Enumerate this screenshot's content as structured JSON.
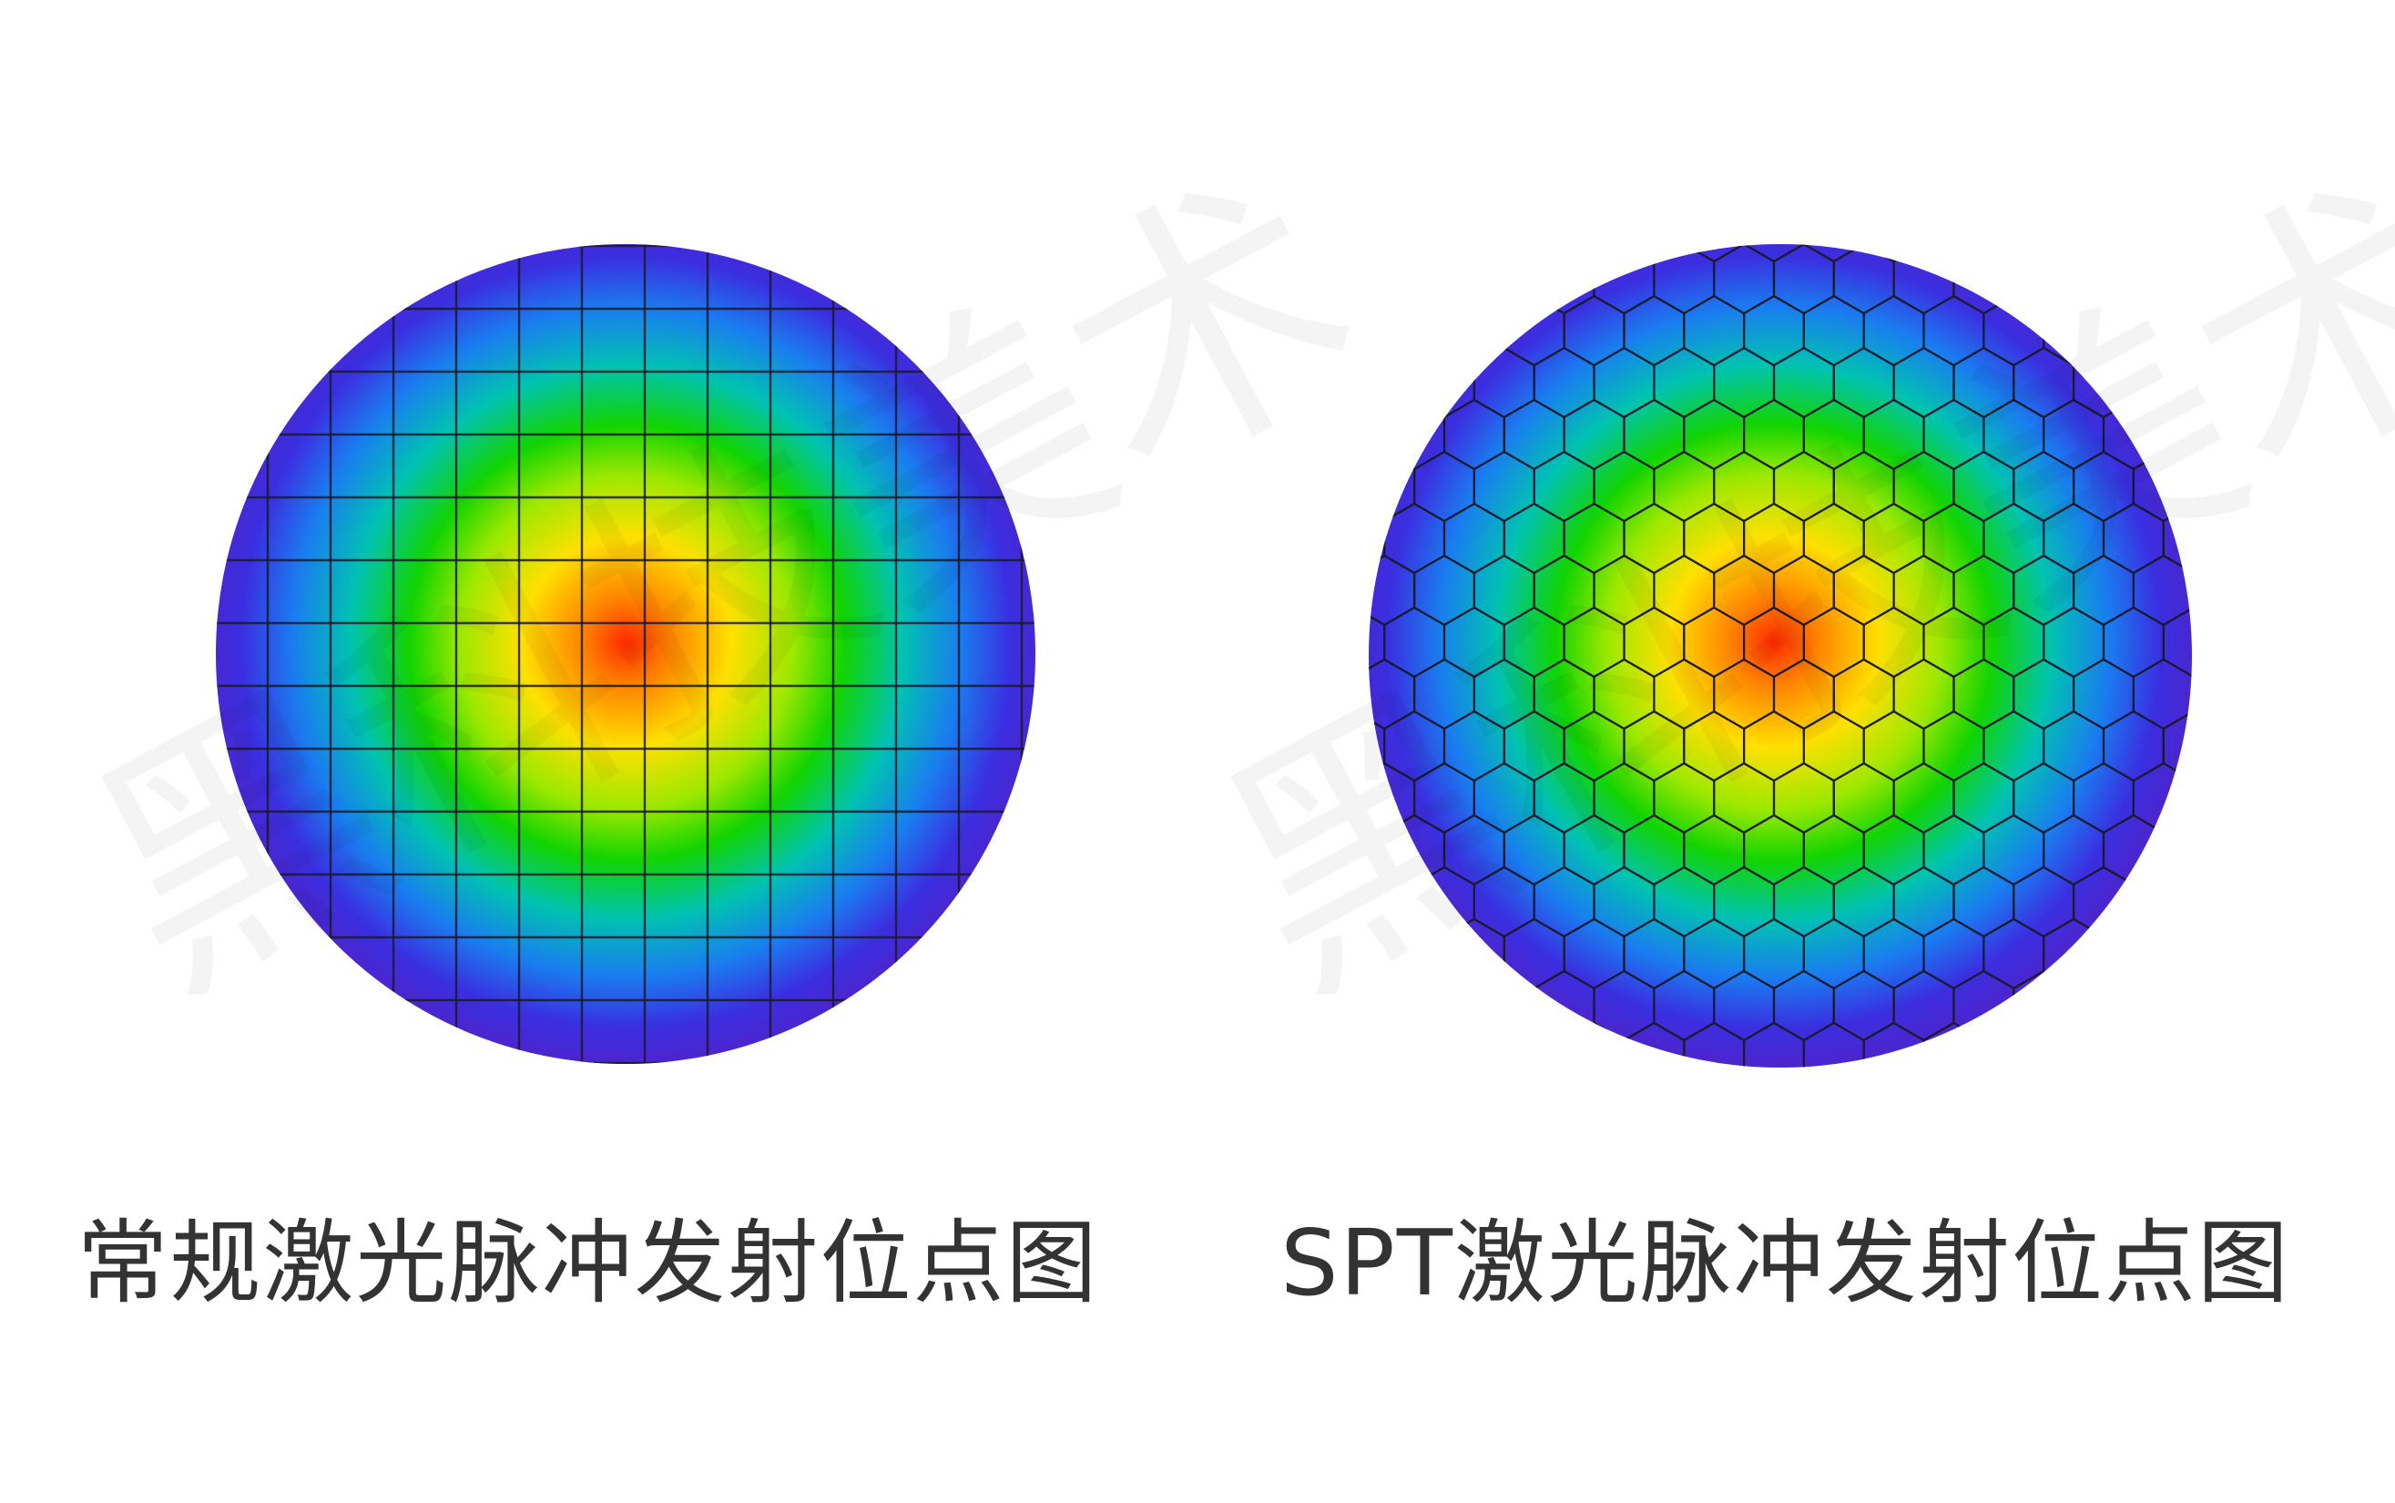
{
  "panels": [
    {
      "id": "conventional",
      "caption": "常规激光脉冲发射位点图",
      "pattern": "square-grid"
    },
    {
      "id": "spt",
      "caption": "SPT激光脉冲发射位点图",
      "pattern": "hexagonal-grid"
    }
  ],
  "watermark": {
    "text": "黑科技美术"
  },
  "colors": {
    "background": "#ffffff",
    "caption": "#333333",
    "gradient": [
      "#ff2a00",
      "#ff8000",
      "#ffe000",
      "#9be800",
      "#12d400",
      "#00c3b0",
      "#1a7cf0",
      "#3a2fe0",
      "#4a26d0"
    ],
    "grid_line": "#1a1a2a"
  }
}
